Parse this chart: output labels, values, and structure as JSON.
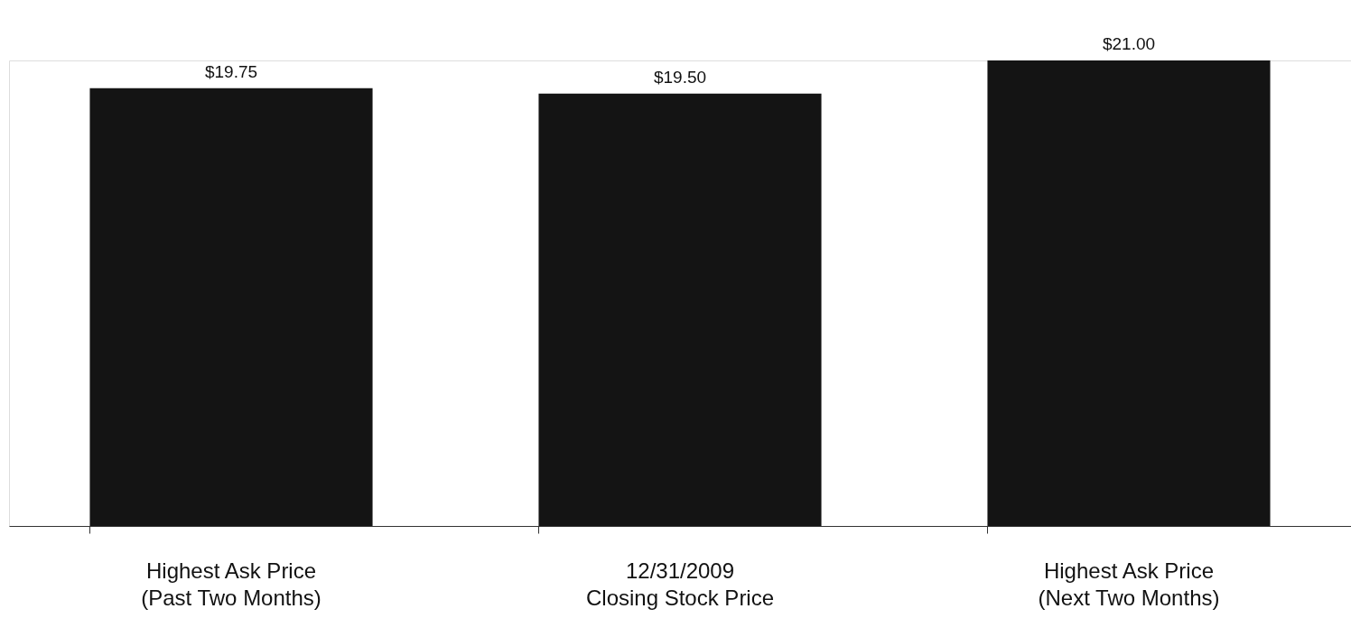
{
  "chart_data": {
    "type": "bar",
    "categories": [
      "Highest Ask Price\n(Past Two Months)",
      "12/31/2009\nClosing Stock Price",
      "Highest Ask Price\n(Next Two Months)"
    ],
    "values": [
      19.75,
      19.5,
      21.0
    ],
    "value_labels": [
      "$19.75",
      "$19.50",
      "$21.00"
    ],
    "color": "#141414",
    "grid": false
  }
}
